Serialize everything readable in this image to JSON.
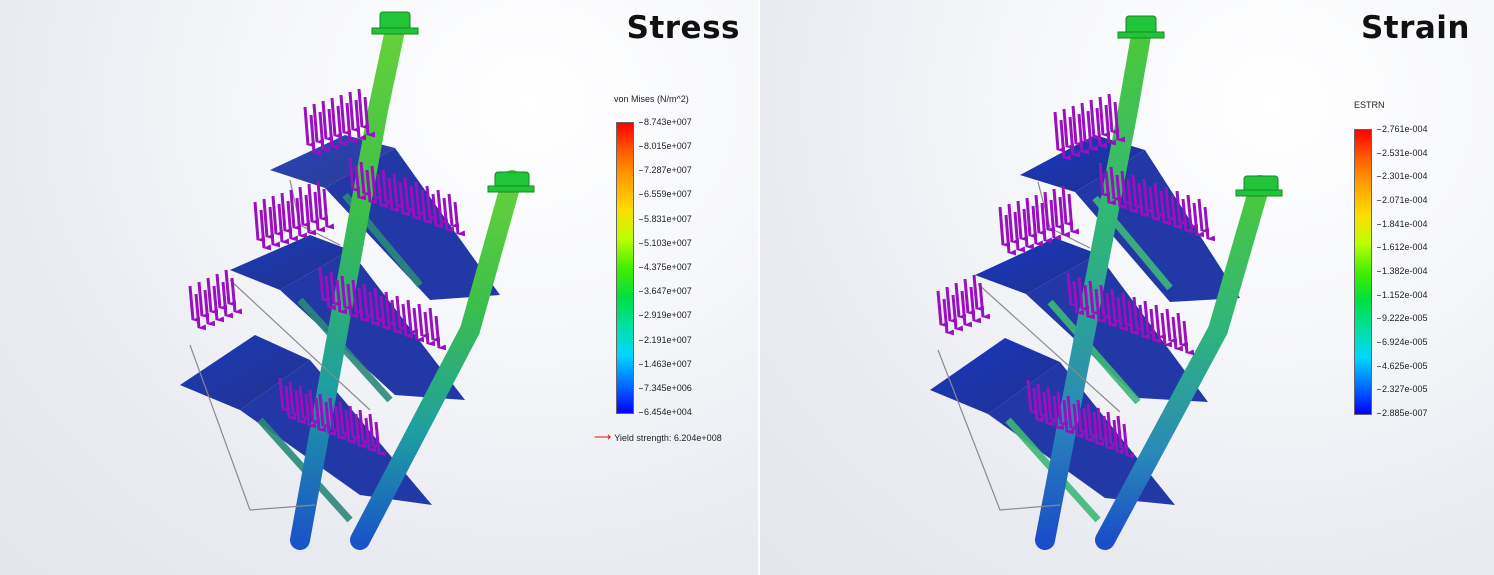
{
  "stress": {
    "title": "Stress",
    "legend": {
      "title": "von Mises (N/m^2)",
      "ticks": [
        "8.743e+007",
        "8.015e+007",
        "7.287e+007",
        "6.559e+007",
        "5.831e+007",
        "5.103e+007",
        "4.375e+007",
        "3.647e+007",
        "2.919e+007",
        "2.191e+007",
        "1.463e+007",
        "7.345e+006",
        "6.454e+004"
      ],
      "yield_label": "Yield strength: 6.204e+008"
    }
  },
  "strain": {
    "title": "Strain",
    "legend": {
      "title": "ESTRN",
      "ticks": [
        "2.761e-004",
        "2.531e-004",
        "2.301e-004",
        "2.071e-004",
        "1.841e-004",
        "1.612e-004",
        "1.382e-004",
        "1.152e-004",
        "9.222e-005",
        "6.924e-005",
        "4.625e-005",
        "2.327e-005",
        "2.885e-007"
      ]
    }
  },
  "colors": {
    "arrow": "#9a10c0",
    "plate": "#1c3fb0",
    "pipe_green": "#3bbf4a",
    "pipe_blue": "#1d5ac8",
    "fixture": "#22c43a",
    "yield_arrow": "#e01010"
  },
  "icons": {
    "load_arrow": "load-arrow-icon",
    "fixture": "fixed-support-icon",
    "yield": "yield-arrow-icon"
  }
}
